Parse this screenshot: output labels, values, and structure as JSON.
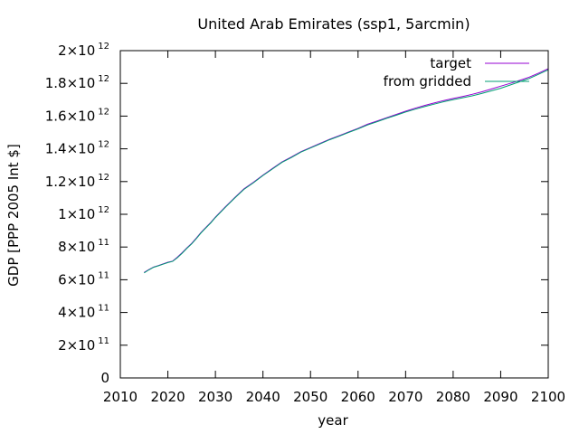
{
  "chart_data": {
    "type": "line",
    "title": "United Arab Emirates (ssp1, 5arcmin)",
    "xlabel": "year",
    "ylabel": "GDP [PPP 2005 Int $]",
    "xlim": [
      2010,
      2100
    ],
    "ylim": [
      0,
      2000000000000.0
    ],
    "grid": false,
    "legend_position": "top-right",
    "xticks": [
      {
        "value": 2010,
        "label": "2010"
      },
      {
        "value": 2020,
        "label": "2020"
      },
      {
        "value": 2030,
        "label": "2030"
      },
      {
        "value": 2040,
        "label": "2040"
      },
      {
        "value": 2050,
        "label": "2050"
      },
      {
        "value": 2060,
        "label": "2060"
      },
      {
        "value": 2070,
        "label": "2070"
      },
      {
        "value": 2080,
        "label": "2080"
      },
      {
        "value": 2090,
        "label": "2090"
      },
      {
        "value": 2100,
        "label": "2100"
      }
    ],
    "yticks": [
      {
        "value": 0,
        "mantissa": "0",
        "exp": ""
      },
      {
        "value": 200000000000.0,
        "mantissa": "2×10",
        "exp": "11"
      },
      {
        "value": 400000000000.0,
        "mantissa": "4×10",
        "exp": "11"
      },
      {
        "value": 600000000000.0,
        "mantissa": "6×10",
        "exp": "11"
      },
      {
        "value": 800000000000.0,
        "mantissa": "8×10",
        "exp": "11"
      },
      {
        "value": 1000000000000.0,
        "mantissa": "1×10",
        "exp": "12"
      },
      {
        "value": 1200000000000.0,
        "mantissa": "1.2×10",
        "exp": "12"
      },
      {
        "value": 1400000000000.0,
        "mantissa": "1.4×10",
        "exp": "12"
      },
      {
        "value": 1600000000000.0,
        "mantissa": "1.6×10",
        "exp": "12"
      },
      {
        "value": 1800000000000.0,
        "mantissa": "1.8×10",
        "exp": "12"
      },
      {
        "value": 2000000000000.0,
        "mantissa": "2×10",
        "exp": "12"
      }
    ],
    "series": [
      {
        "name": "target",
        "color": "#9400d3",
        "x": [
          2015,
          2016,
          2017,
          2018,
          2019,
          2020,
          2021,
          2022,
          2023,
          2024,
          2025,
          2026,
          2027,
          2028,
          2029,
          2030,
          2032,
          2034,
          2036,
          2038,
          2040,
          2042,
          2044,
          2046,
          2048,
          2050,
          2052,
          2054,
          2056,
          2058,
          2060,
          2062,
          2064,
          2066,
          2068,
          2070,
          2072,
          2074,
          2076,
          2078,
          2080,
          2082,
          2084,
          2086,
          2088,
          2090,
          2092,
          2094,
          2096,
          2098,
          2100
        ],
        "y": [
          645000000000.0,
          662000000000.0,
          678000000000.0,
          687000000000.0,
          697000000000.0,
          707000000000.0,
          714000000000.0,
          738000000000.0,
          765000000000.0,
          795000000000.0,
          822000000000.0,
          855000000000.0,
          890000000000.0,
          920000000000.0,
          950000000000.0,
          983000000000.0,
          1043000000000.0,
          1100000000000.0,
          1155000000000.0,
          1196000000000.0,
          1240000000000.0,
          1280000000000.0,
          1320000000000.0,
          1350000000000.0,
          1383000000000.0,
          1408000000000.0,
          1433000000000.0,
          1458000000000.0,
          1480000000000.0,
          1503000000000.0,
          1525000000000.0,
          1550000000000.0,
          1570000000000.0,
          1590000000000.0,
          1610000000000.0,
          1630000000000.0,
          1648000000000.0,
          1665000000000.0,
          1680000000000.0,
          1695000000000.0,
          1708000000000.0,
          1720000000000.0,
          1733000000000.0,
          1748000000000.0,
          1765000000000.0,
          1783000000000.0,
          1800000000000.0,
          1818000000000.0,
          1838000000000.0,
          1863000000000.0,
          1890000000000.0
        ]
      },
      {
        "name": "from gridded",
        "color": "#009e73",
        "x": [
          2015,
          2016,
          2017,
          2018,
          2019,
          2020,
          2021,
          2022,
          2023,
          2024,
          2025,
          2026,
          2027,
          2028,
          2029,
          2030,
          2032,
          2034,
          2036,
          2038,
          2040,
          2042,
          2044,
          2046,
          2048,
          2050,
          2052,
          2054,
          2056,
          2058,
          2060,
          2062,
          2064,
          2066,
          2068,
          2070,
          2072,
          2074,
          2076,
          2078,
          2080,
          2082,
          2084,
          2086,
          2088,
          2090,
          2092,
          2094,
          2096,
          2098,
          2100
        ],
        "y": [
          642000000000.0,
          660000000000.0,
          676000000000.0,
          685000000000.0,
          695000000000.0,
          705000000000.0,
          712000000000.0,
          735000000000.0,
          762000000000.0,
          792000000000.0,
          819000000000.0,
          852000000000.0,
          887000000000.0,
          917000000000.0,
          947000000000.0,
          980000000000.0,
          1040000000000.0,
          1097000000000.0,
          1152000000000.0,
          1193000000000.0,
          1237000000000.0,
          1277000000000.0,
          1317000000000.0,
          1347000000000.0,
          1380000000000.0,
          1405000000000.0,
          1430000000000.0,
          1455000000000.0,
          1477000000000.0,
          1500000000000.0,
          1522000000000.0,
          1546000000000.0,
          1566000000000.0,
          1586000000000.0,
          1605000000000.0,
          1625000000000.0,
          1642000000000.0,
          1658000000000.0,
          1673000000000.0,
          1688000000000.0,
          1700000000000.0,
          1712000000000.0,
          1724000000000.0,
          1738000000000.0,
          1754000000000.0,
          1770000000000.0,
          1790000000000.0,
          1810000000000.0,
          1830000000000.0,
          1856000000000.0,
          1883000000000.0
        ]
      }
    ]
  }
}
